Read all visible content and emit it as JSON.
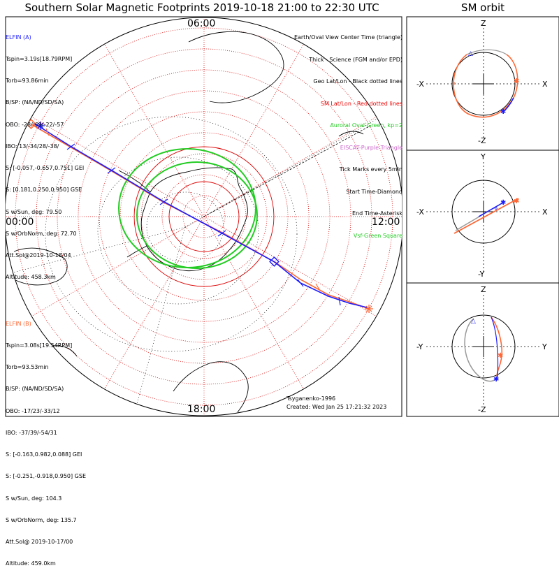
{
  "title": "Southern Solar Magnetic Footprints 2019-10-18 21:00 to 22:30 UTC",
  "orbit_title": "SM orbit",
  "time_labels": {
    "top": "06:00",
    "left": "00:00",
    "right": "12:00",
    "bottom": "18:00"
  },
  "elfin_a": {
    "name": "ELFIN (A)",
    "color": "#1a1aff",
    "lines": [
      "Tspin=3.19s[18.79RPM]",
      "Torb=93.86min",
      "B/SP: (NA/ND/SD/SA)",
      "OBO: -28/-69/-22/-57",
      "IBO: 13/-34/28/-38/",
      "S: [-0.057,-0.657,0.751] GEI",
      "S: [0.181,0.250,0.950] GSE",
      "S w/Sun, deg: 79.50",
      "S w/OrbNorm, deg: 72.70",
      "Att.Sol@2019-10-18/04",
      "Altitude: 458.3km"
    ]
  },
  "elfin_b": {
    "name": "ELFIN (B)",
    "color": "#ff6633",
    "lines": [
      "Tspin=3.08s[19.54RPM]",
      "Torb=93.53min",
      "B/SP: (NA/ND/SD/SA)",
      "OBO: -17/23/-33/12",
      "IBO: -37/39/-54/31",
      "S: [-0.163,0.982,0.088] GEI",
      "S: [-0.251,-0.918,0.950] GSE",
      "S w/Sun, deg: 104.3",
      "S w/OrbNorm, deg: 135.7",
      "Att.Sol@ 2019-10-17/00",
      "Altitude: 459.0km"
    ]
  },
  "legend": [
    {
      "text": "Earth/Oval View Center Time (triangle)",
      "color": "#000000"
    },
    {
      "text": "Thick - Science (FGM and/or EPD)",
      "color": "#000000"
    },
    {
      "text": "Geo Lat/Lon - Black dotted lines",
      "color": "#000000"
    },
    {
      "text": "SM Lat/Lon - Red dotted lines",
      "color": "#ee0000"
    },
    {
      "text": "Auroral Oval-Green, kp=2",
      "color": "#22cc22"
    },
    {
      "text": "EISCAT-Purple Triangle",
      "color": "#cc66cc"
    },
    {
      "text": "Tick Marks every 5min",
      "color": "#000000"
    },
    {
      "text": "Start Time-Diamond",
      "color": "#000000"
    },
    {
      "text": "End Time-Asterisk",
      "color": "#000000"
    },
    {
      "text": "Vsf-Green Square",
      "color": "#22cc22"
    }
  ],
  "footer": {
    "credit": "Tsyganenko-1996",
    "created": "Created: Wed Jan 25 17:21:32 2023"
  },
  "orbit_panels": [
    {
      "top": "Z",
      "bottom": "-Z",
      "left": "-X",
      "right": "X"
    },
    {
      "top": "Y",
      "bottom": "-Y",
      "left": "-X",
      "right": "X"
    },
    {
      "top": "Z",
      "bottom": "-Z",
      "left": "-Y",
      "right": "Y"
    }
  ],
  "chart_data": {
    "type": "polar-footprint-map",
    "hemisphere": "southern",
    "colors": {
      "elfin_a": "#1a1aff",
      "elfin_b": "#ff6633",
      "sm_grid": "#dd0000",
      "auroral_oval": "#22cc22"
    }
  }
}
